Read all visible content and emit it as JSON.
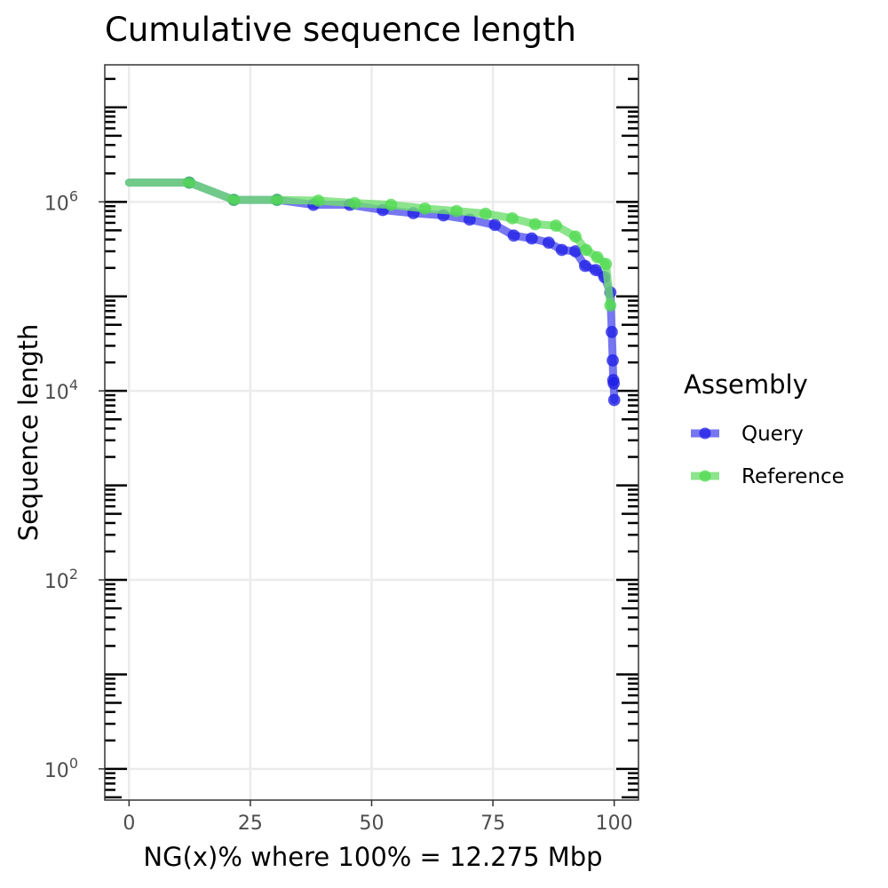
{
  "chart_data": {
    "type": "line",
    "title": "Cumulative sequence length",
    "xlabel": "NG(x)% where 100% = 12.275 Mbp",
    "ylabel": "Sequence length",
    "xlim": [
      -5,
      105
    ],
    "ylim_log10": [
      -0.33,
      7.45
    ],
    "x_ticks": [
      {
        "value": 0,
        "label": "0"
      },
      {
        "value": 25,
        "label": "25"
      },
      {
        "value": 50,
        "label": "50"
      },
      {
        "value": 75,
        "label": "75"
      },
      {
        "value": 100,
        "label": "100"
      }
    ],
    "y_ticks": [
      {
        "exp": 0,
        "base": "10",
        "sup": "0"
      },
      {
        "exp": 2,
        "base": "10",
        "sup": "2"
      },
      {
        "exp": 4,
        "base": "10",
        "sup": "4"
      },
      {
        "exp": 6,
        "base": "10",
        "sup": "6"
      }
    ],
    "grid": true,
    "log_tick_annotation": "both sides",
    "legend": {
      "title": "Assembly",
      "position": "right",
      "entries": [
        {
          "name": "Query",
          "color": "#1c1ce6"
        },
        {
          "name": "Reference",
          "color": "#4fd94f"
        }
      ]
    },
    "series": [
      {
        "name": "Query",
        "color": "#1c1ce6",
        "line_color": "#5555ee",
        "points": [
          [
            12.4,
            1600000
          ],
          [
            21.6,
            1050000
          ],
          [
            30.5,
            1050000
          ],
          [
            38.0,
            930000
          ],
          [
            45.5,
            930000
          ],
          [
            52.3,
            820000
          ],
          [
            58.6,
            760000
          ],
          [
            64.8,
            720000
          ],
          [
            70.2,
            650000
          ],
          [
            75.4,
            570000
          ],
          [
            79.3,
            440000
          ],
          [
            83.0,
            410000
          ],
          [
            86.5,
            370000
          ],
          [
            89.2,
            310000
          ],
          [
            92.0,
            300000
          ],
          [
            94.0,
            210000
          ],
          [
            96.2,
            190000
          ],
          [
            98.0,
            160000
          ],
          [
            99.2,
            110000
          ],
          [
            99.5,
            42000
          ],
          [
            99.7,
            21000
          ],
          [
            99.8,
            13000
          ],
          [
            99.9,
            12000
          ],
          [
            100.0,
            8000
          ]
        ]
      },
      {
        "name": "Reference",
        "color": "#4fd94f",
        "line_color": "#6fdf6f",
        "points": [
          [
            12.4,
            1600000
          ],
          [
            21.6,
            1050000
          ],
          [
            30.5,
            1050000
          ],
          [
            39.0,
            1030000
          ],
          [
            46.5,
            970000
          ],
          [
            54.0,
            930000
          ],
          [
            61.0,
            850000
          ],
          [
            67.5,
            800000
          ],
          [
            73.5,
            750000
          ],
          [
            79.0,
            670000
          ],
          [
            83.7,
            580000
          ],
          [
            88.0,
            560000
          ],
          [
            92.0,
            430000
          ],
          [
            94.2,
            310000
          ],
          [
            96.5,
            260000
          ],
          [
            98.3,
            220000
          ],
          [
            99.2,
            80000
          ]
        ]
      }
    ]
  }
}
